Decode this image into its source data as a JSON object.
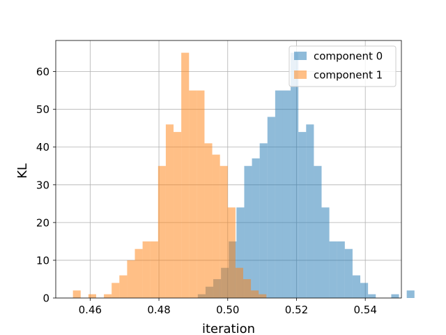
{
  "chart_data": {
    "type": "histogram",
    "xlabel": "iteration",
    "ylabel": "KL",
    "xlim": [
      0.45,
      0.5505
    ],
    "ylim": [
      0,
      68.25
    ],
    "xticks": [
      0.46,
      0.48,
      0.5,
      0.52,
      0.54
    ],
    "xtick_labels": [
      "0.46",
      "0.48",
      "0.50",
      "0.52",
      "0.54"
    ],
    "yticks": [
      0,
      10,
      20,
      30,
      40,
      50,
      60
    ],
    "ytick_labels": [
      "0",
      "10",
      "20",
      "30",
      "40",
      "50",
      "60"
    ],
    "grid": true,
    "legend_position": "top-right",
    "series": [
      {
        "name": "component 0",
        "color": "#1f77b4",
        "alpha": 0.5,
        "bin_start": 0.4913,
        "bin_width": 0.00225,
        "counts": [
          1,
          3,
          5,
          8,
          15,
          24,
          35,
          37,
          41,
          48,
          55,
          55,
          65,
          44,
          46,
          35,
          24,
          15,
          15,
          13,
          6,
          4,
          1,
          0,
          0,
          1,
          0,
          2
        ]
      },
      {
        "name": "component 1",
        "color": "#ff7f0e",
        "alpha": 0.5,
        "bin_start": 0.455,
        "bin_width": 0.00225,
        "counts": [
          2,
          0,
          1,
          0,
          1,
          4,
          6,
          10,
          13,
          15,
          15,
          35,
          46,
          44,
          65,
          55,
          55,
          41,
          38,
          35,
          24,
          8,
          5,
          2,
          1
        ]
      }
    ]
  }
}
